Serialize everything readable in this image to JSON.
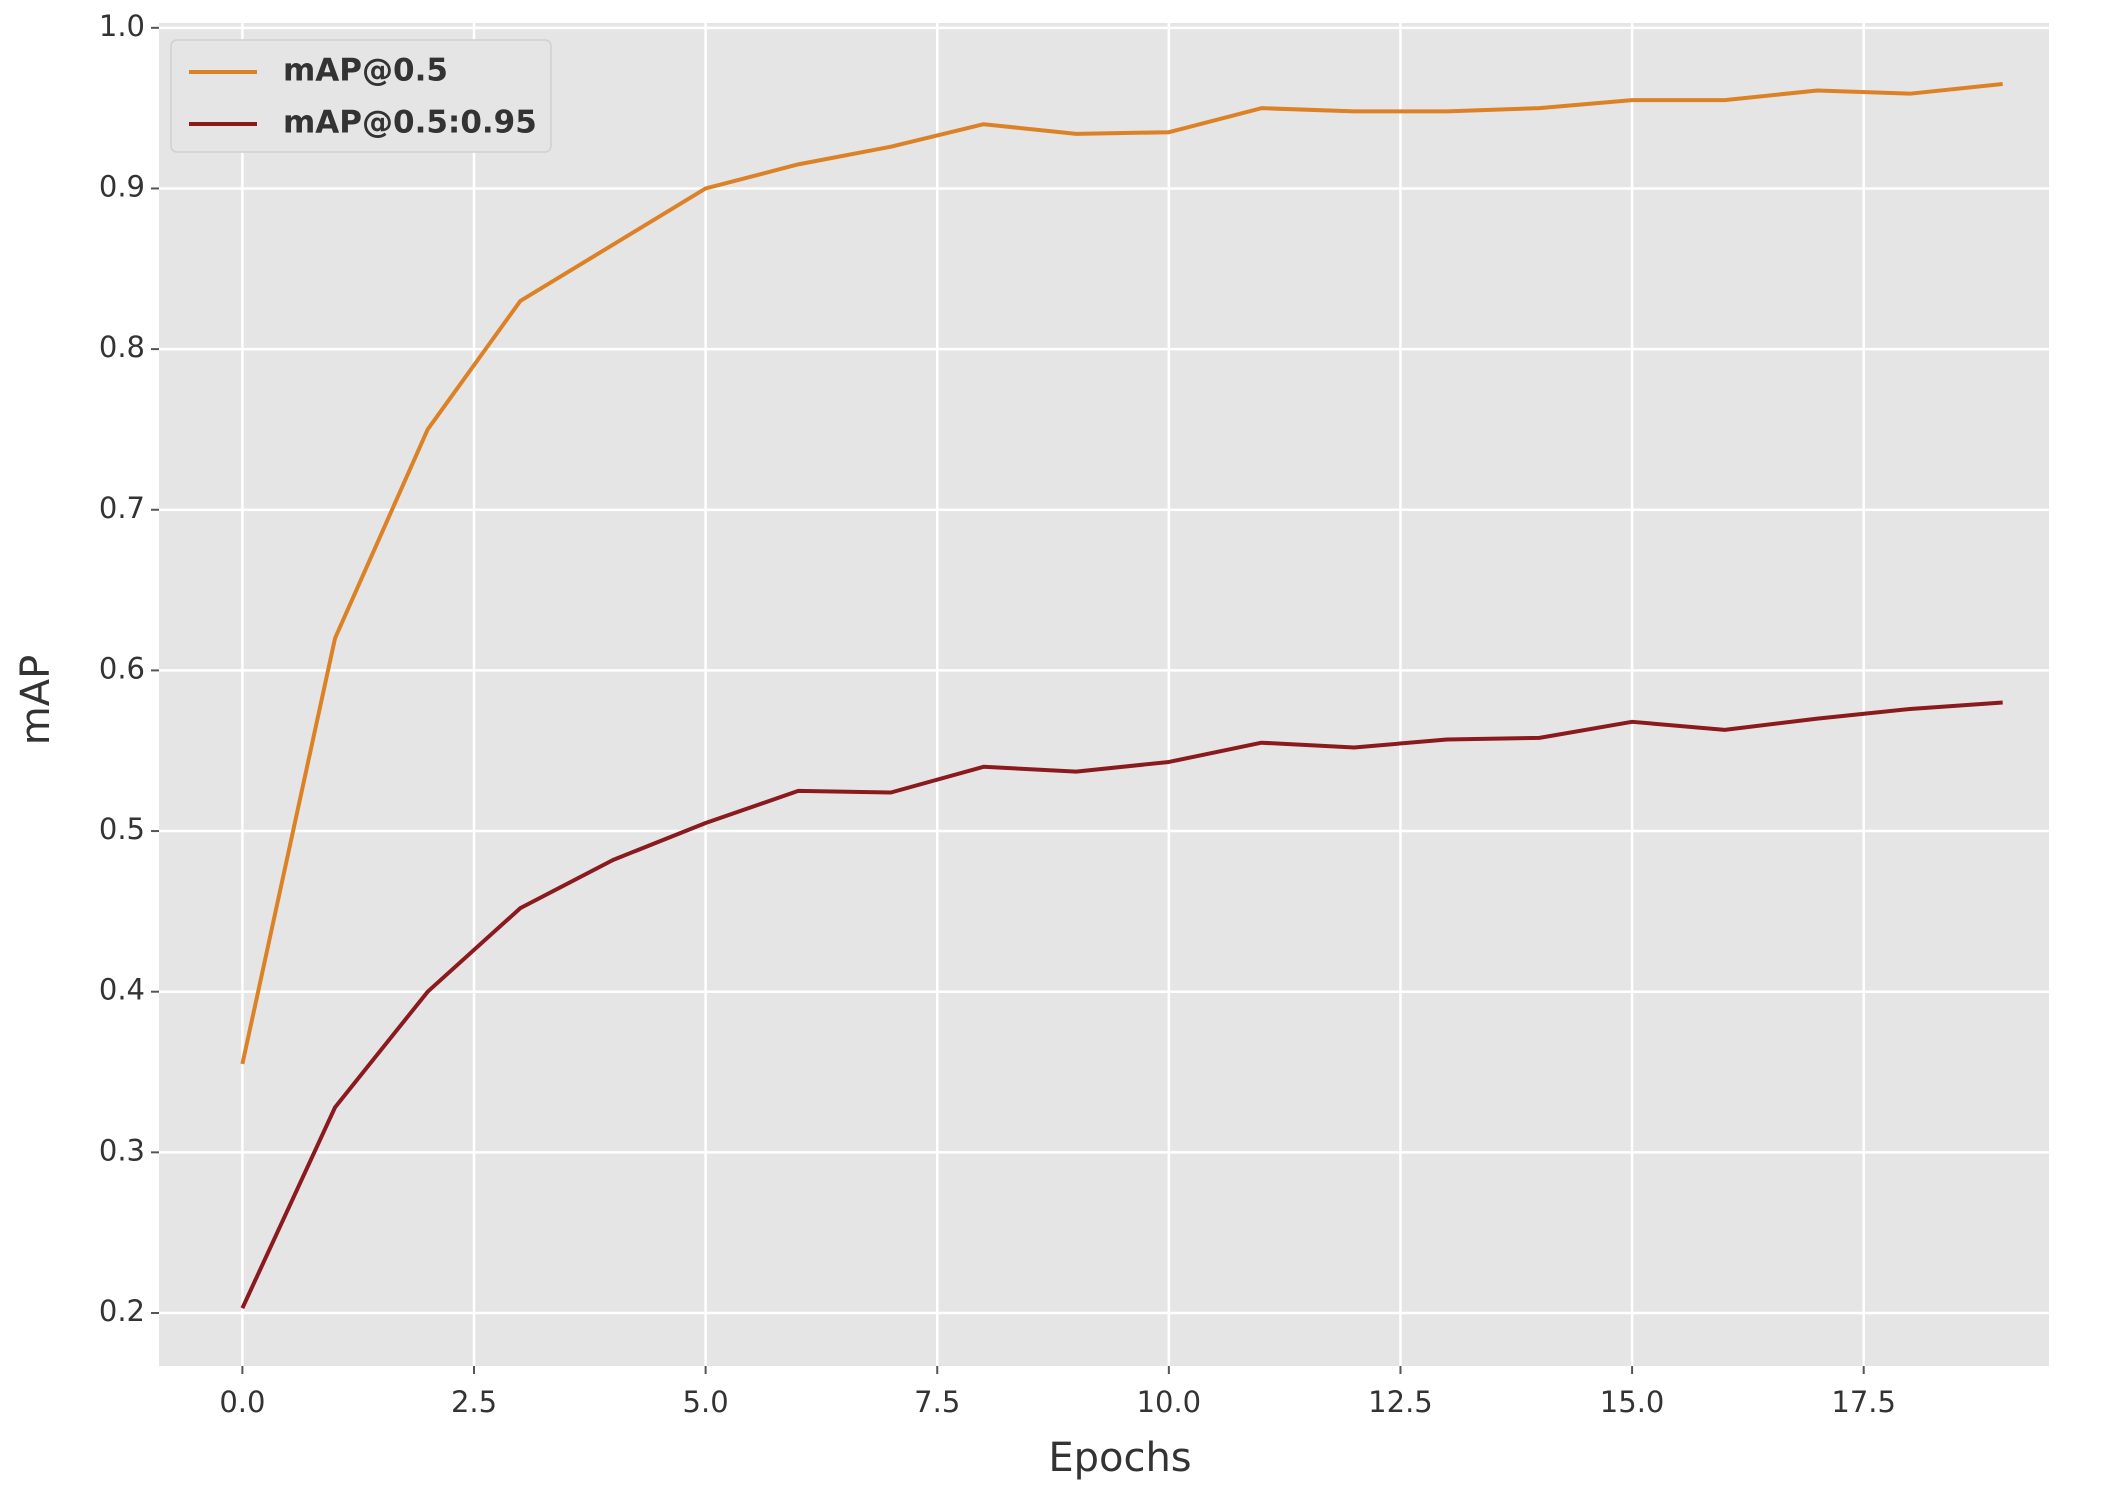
{
  "chart_data": {
    "type": "line",
    "x": [
      0,
      1,
      2,
      3,
      4,
      5,
      6,
      7,
      8,
      9,
      10,
      11,
      12,
      13,
      14,
      15,
      16,
      17,
      18,
      19
    ],
    "series": [
      {
        "name": "mAP@0.5",
        "color": "#dd8126",
        "values": [
          0.355,
          0.62,
          0.75,
          0.83,
          0.865,
          0.9,
          0.915,
          0.926,
          0.94,
          0.934,
          0.935,
          0.95,
          0.948,
          0.948,
          0.95,
          0.955,
          0.955,
          0.961,
          0.959,
          0.965
        ]
      },
      {
        "name": "mAP@0.5:0.95",
        "color": "#8b1a1e",
        "values": [
          0.203,
          0.328,
          0.4,
          0.452,
          0.482,
          0.505,
          0.525,
          0.524,
          0.54,
          0.537,
          0.543,
          0.555,
          0.552,
          0.557,
          0.558,
          0.568,
          0.563,
          0.57,
          0.576,
          0.58
        ]
      }
    ],
    "x_label": "Epochs",
    "y_label": "mAP",
    "xlim": [
      -0.9,
      19.5
    ],
    "ylim": [
      0.167,
      1.003
    ],
    "xticks": [
      {
        "value": 0,
        "label": "0.0"
      },
      2.5,
      {
        "value": 5,
        "label": "5.0"
      },
      7.5,
      {
        "value": 10,
        "label": "10.0"
      },
      12.5,
      {
        "value": 15,
        "label": "15.0"
      },
      17.5
    ],
    "yticks": [
      0.2,
      0.3,
      0.4,
      0.5,
      0.6,
      0.7,
      0.8,
      0.9,
      {
        "value": 1,
        "label": "1.0"
      }
    ],
    "grid": true,
    "legend": "upper left"
  }
}
